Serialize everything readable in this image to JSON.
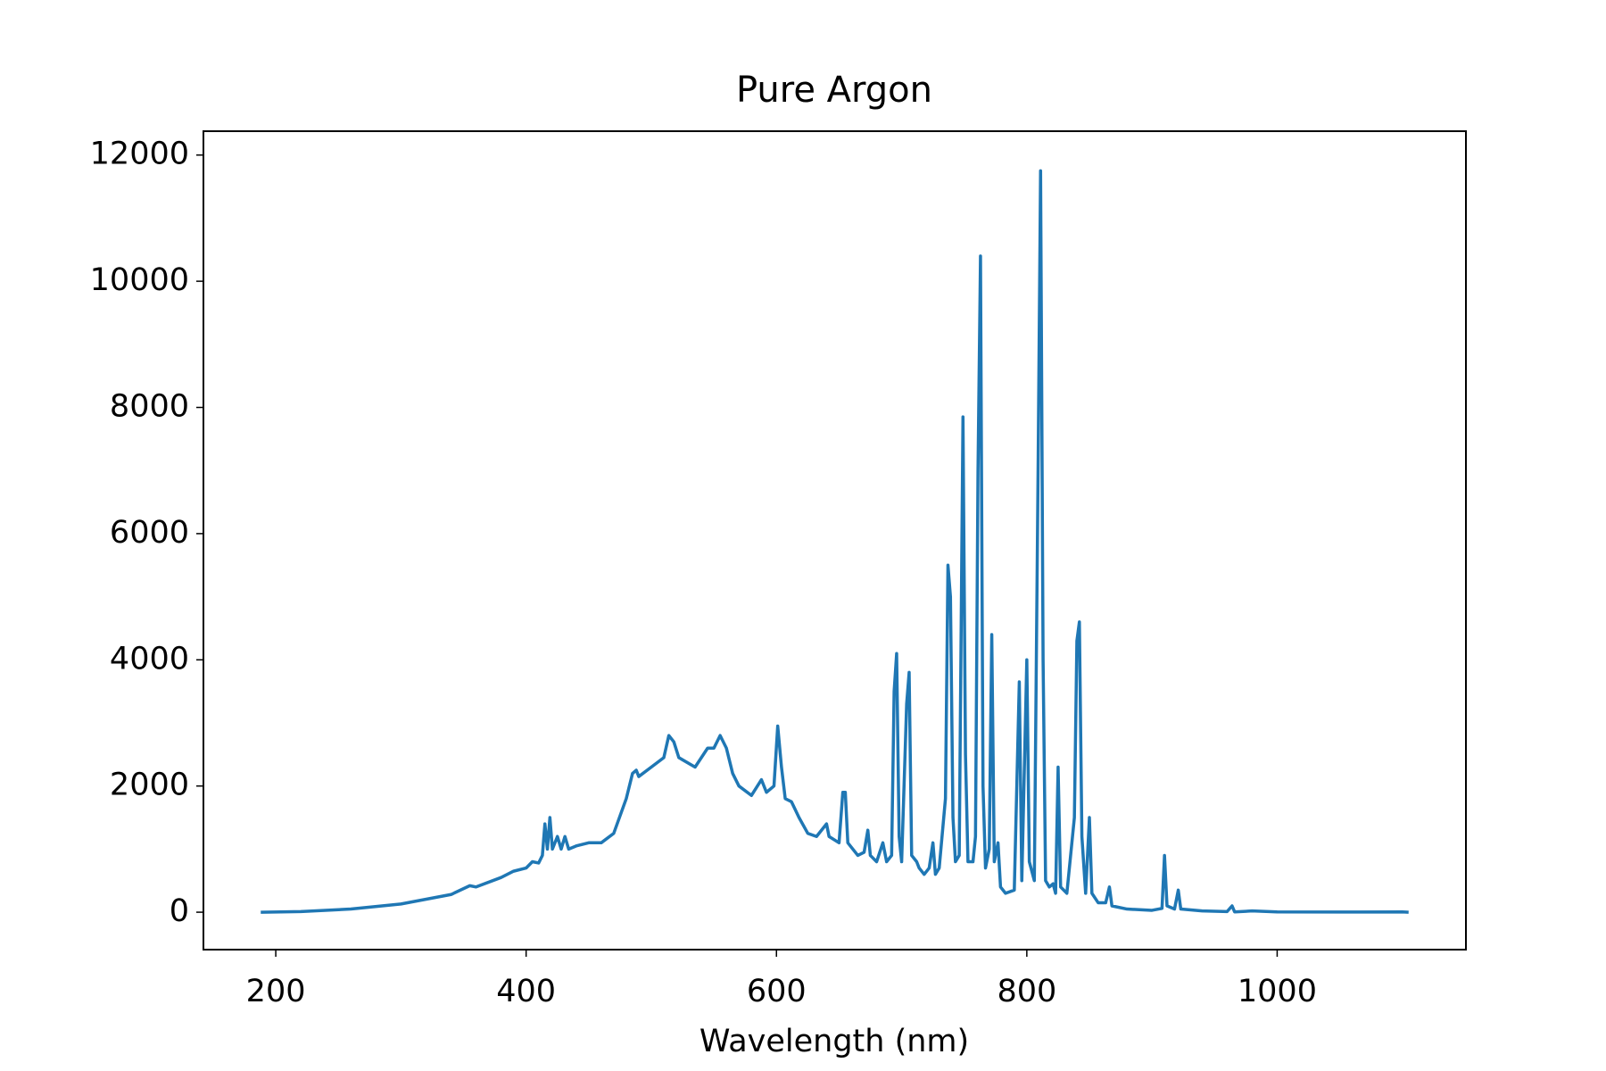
{
  "chart_data": {
    "type": "line",
    "title": "Pure Argon",
    "x_label": "Wavelength (nm)",
    "color": "#1f77b4",
    "grid": false,
    "xlim": [
      142.2,
      1150.8
    ],
    "ylim": [
      -593,
      12378
    ],
    "xticks": [
      200,
      400,
      600,
      800,
      1000
    ],
    "yticks": [
      0,
      2000,
      4000,
      6000,
      8000,
      10000,
      12000
    ],
    "x": [
      188,
      220,
      260,
      300,
      340,
      355,
      360,
      380,
      390,
      400,
      405,
      410,
      413,
      415,
      417,
      419,
      421,
      425,
      428,
      431,
      434,
      440,
      450,
      460,
      470,
      480,
      485,
      488,
      490,
      500,
      510,
      514,
      518,
      522,
      535,
      545,
      550,
      555,
      560,
      565,
      570,
      580,
      588,
      592,
      598,
      601,
      604,
      607,
      612,
      618,
      625,
      632,
      640,
      642,
      650,
      653,
      655,
      657,
      665,
      670,
      673,
      675,
      680,
      685,
      688,
      692,
      694,
      696,
      698,
      700,
      704,
      706,
      708,
      712,
      714,
      718,
      722,
      725,
      727,
      730,
      735,
      737,
      739,
      741,
      743,
      746,
      749,
      751,
      753,
      757,
      759,
      761,
      763,
      765,
      767,
      770,
      772,
      774,
      777,
      779,
      783,
      790,
      794,
      796,
      800,
      802,
      806,
      809,
      811,
      813,
      815,
      818,
      821,
      823,
      825,
      827,
      832,
      838,
      840,
      842,
      844,
      847,
      850,
      852,
      857,
      863,
      866,
      868,
      880,
      900,
      908,
      910,
      912,
      918,
      921,
      923,
      940,
      960,
      964,
      966,
      980,
      1000,
      1050,
      1100,
      1105
    ],
    "values": [
      0,
      10,
      50,
      130,
      280,
      420,
      400,
      550,
      650,
      700,
      800,
      780,
      900,
      1400,
      1000,
      1500,
      1000,
      1200,
      1000,
      1200,
      1000,
      1050,
      1100,
      1100,
      1250,
      1800,
      2200,
      2250,
      2150,
      2300,
      2450,
      2800,
      2700,
      2450,
      2300,
      2600,
      2600,
      2800,
      2600,
      2200,
      2000,
      1850,
      2100,
      1900,
      2000,
      2950,
      2300,
      1800,
      1750,
      1500,
      1250,
      1200,
      1400,
      1200,
      1100,
      1900,
      1900,
      1100,
      900,
      950,
      1300,
      900,
      800,
      1100,
      800,
      900,
      3500,
      4100,
      1200,
      800,
      3300,
      3800,
      900,
      800,
      700,
      600,
      700,
      1100,
      600,
      700,
      1800,
      5500,
      5000,
      1500,
      800,
      900,
      7850,
      2500,
      800,
      800,
      1200,
      7000,
      10400,
      2000,
      700,
      1000,
      4400,
      800,
      1100,
      400,
      300,
      350,
      3650,
      500,
      4000,
      800,
      500,
      7000,
      11750,
      4000,
      500,
      400,
      450,
      300,
      2300,
      400,
      300,
      1500,
      4300,
      4600,
      1200,
      300,
      1500,
      300,
      150,
      150,
      400,
      100,
      50,
      30,
      60,
      900,
      100,
      50,
      350,
      50,
      20,
      10,
      100,
      5,
      20,
      5,
      3,
      5,
      0
    ]
  }
}
